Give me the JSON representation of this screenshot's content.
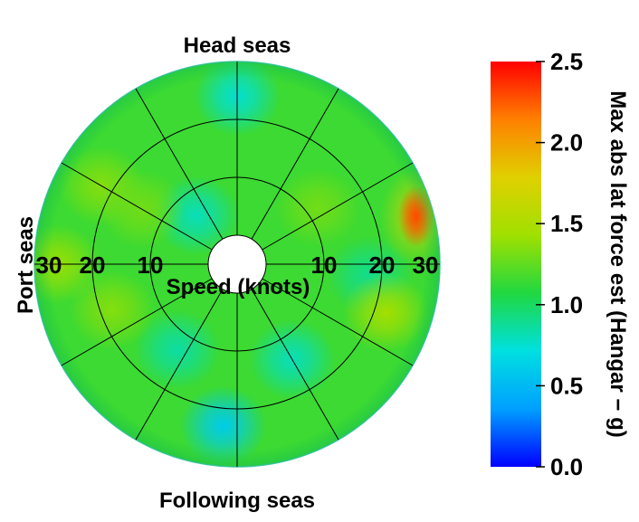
{
  "chart_data": {
    "type": "heatmap",
    "subtype": "polar",
    "direction_labels": {
      "top": "Head seas",
      "bottom": "Following seas",
      "left": "Port seas"
    },
    "radial_axis": {
      "label": "Speed (knots)",
      "range": [
        0,
        30
      ],
      "ticks": [
        10,
        20,
        30
      ],
      "tick_labels_left": [
        "30",
        "20",
        "10"
      ],
      "tick_labels_right": [
        "10",
        "20",
        "30"
      ]
    },
    "angular_spokes_deg": [
      0,
      30,
      60,
      90,
      120,
      150,
      180,
      210,
      240,
      270,
      300,
      330
    ],
    "grid": true,
    "colorbar": {
      "label": "Max abs lat force est (Hangar − g)",
      "range": [
        0.0,
        2.5
      ],
      "ticks": [
        0.0,
        0.5,
        1.0,
        1.5,
        2.0,
        2.5
      ],
      "tick_labels": [
        "0.0",
        "0.5",
        "1.0",
        "1.5",
        "2.0",
        "2.5"
      ],
      "colormap": [
        "#0000ff",
        "#00a0ff",
        "#00e0e0",
        "#20d840",
        "#a0e000",
        "#e0d000",
        "#ff8000",
        "#ff0000"
      ]
    },
    "background_value": 1.15,
    "features": [
      {
        "azimuth_deg": 0,
        "speed": 24,
        "value": 0.75
      },
      {
        "azimuth_deg": 185,
        "speed": 23,
        "value": 0.6
      },
      {
        "azimuth_deg": 150,
        "speed": 14,
        "value": 0.8
      },
      {
        "azimuth_deg": 215,
        "speed": 13,
        "value": 0.85
      },
      {
        "azimuth_deg": 320,
        "speed": 6,
        "value": 0.8
      },
      {
        "azimuth_deg": 95,
        "speed": 18,
        "value": 0.9
      },
      {
        "azimuth_deg": 75,
        "speed": 27,
        "value": 2.3
      },
      {
        "azimuth_deg": 108,
        "speed": 22,
        "value": 1.45
      },
      {
        "azimuth_deg": 270,
        "speed": 26,
        "value": 1.4
      },
      {
        "azimuth_deg": 300,
        "speed": 22,
        "value": 1.35
      },
      {
        "azimuth_deg": 300,
        "speed": 14,
        "value": 1.3
      },
      {
        "azimuth_deg": 250,
        "speed": 18,
        "value": 1.35
      },
      {
        "azimuth_deg": 55,
        "speed": 12,
        "value": 1.3
      }
    ]
  }
}
